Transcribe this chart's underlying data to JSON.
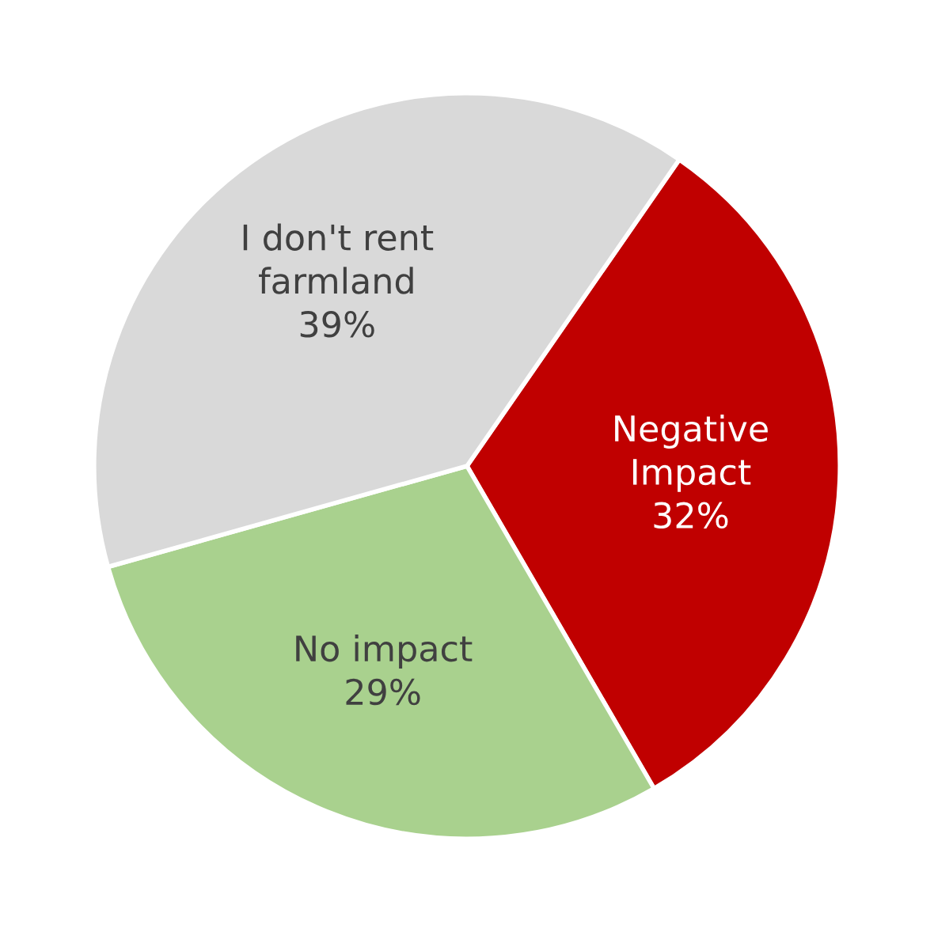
{
  "chart_data": {
    "type": "pie",
    "categories": [
      "Negative Impact",
      "No impact",
      "I don't rent farmland"
    ],
    "values": [
      32,
      29,
      39
    ],
    "colors": [
      "#c00000",
      "#a9d18e",
      "#d9d9d9"
    ],
    "value_labels": [
      "32%",
      "29%",
      "39%"
    ]
  }
}
